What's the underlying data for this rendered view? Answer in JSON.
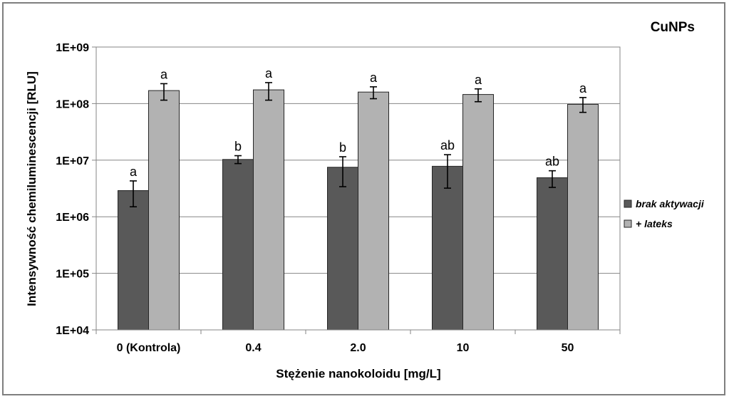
{
  "chart_data": {
    "type": "bar",
    "title": "CuNPs",
    "xlabel": "Stężenie nanokoloidu [mg/L]",
    "ylabel": "Intensywność chemiluminescencji [RLU]",
    "yscale": "log",
    "ylim": [
      10000,
      1000000000
    ],
    "yticks": [
      "1E+04",
      "1E+05",
      "1E+06",
      "1E+07",
      "1E+08",
      "1E+09"
    ],
    "grid": "horizontal",
    "legend_position": "right",
    "categories": [
      "0 (Kontrola)",
      "0.4",
      "2.0",
      "10",
      "50"
    ],
    "series": [
      {
        "name": "brak aktywacji",
        "color": "#595959",
        "values": [
          2900000,
          10300000,
          7500000,
          7800000,
          4900000
        ],
        "err_low": [
          1500000,
          8700000,
          3400000,
          3200000,
          3300000
        ],
        "err_high": [
          4300000,
          12000000,
          11500000,
          12500000,
          6500000
        ],
        "labels": [
          "a",
          "b",
          "b",
          "ab",
          "ab"
        ]
      },
      {
        "name": "+ lateks",
        "color": "#b2b2b2",
        "values": [
          170000000,
          175000000,
          160000000,
          145000000,
          97000000
        ],
        "err_low": [
          115000000,
          115000000,
          122000000,
          108000000,
          70000000
        ],
        "err_high": [
          225000000,
          235000000,
          198000000,
          182000000,
          128000000
        ],
        "labels": [
          "a",
          "a",
          "a",
          "a",
          "a"
        ]
      }
    ]
  }
}
